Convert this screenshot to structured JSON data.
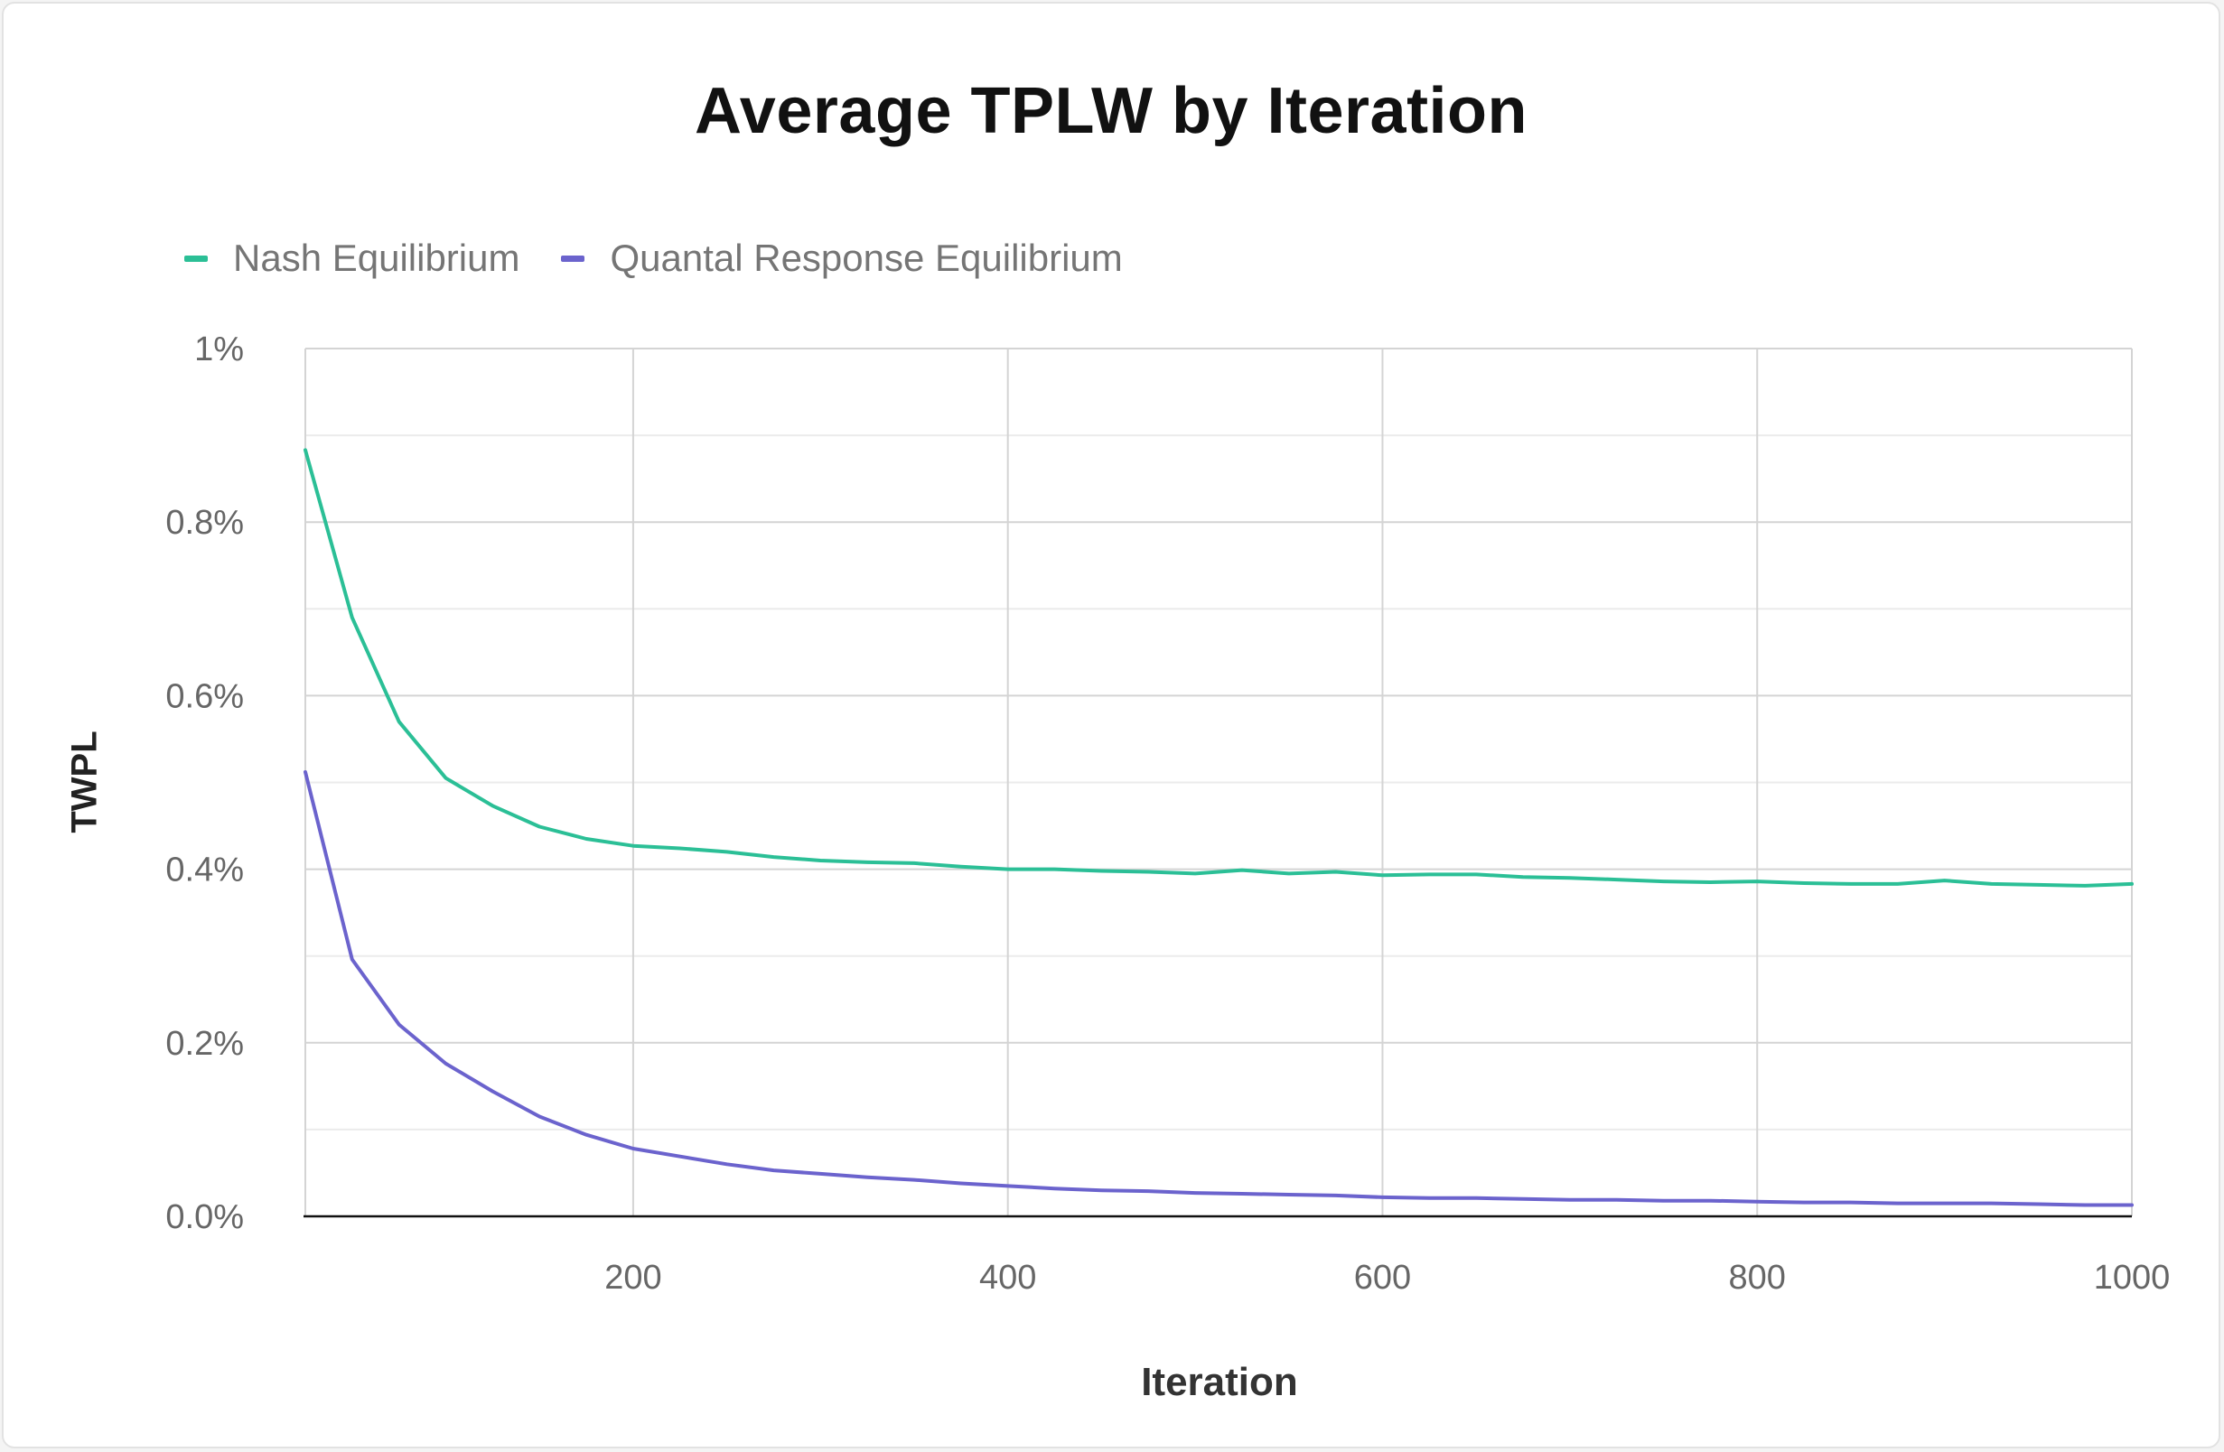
{
  "chart_data": {
    "type": "line",
    "title": "Average TPLW by Iteration",
    "xlabel": "Iteration",
    "ylabel": "TWPL",
    "xlim": [
      25,
      1000
    ],
    "ylim": [
      0,
      1
    ],
    "x_ticks": [
      200,
      400,
      600,
      800,
      1000
    ],
    "x_tick_labels": [
      "200",
      "400",
      "600",
      "800",
      "1000"
    ],
    "y_ticks": [
      0,
      0.2,
      0.4,
      0.6,
      0.8,
      1
    ],
    "y_tick_labels": [
      "0.0%",
      "0.2%",
      "0.4%",
      "0.6%",
      "0.8%",
      "1%"
    ],
    "y_unit": "%",
    "grid": true,
    "legend_position": "top-left",
    "x": [
      25,
      50,
      75,
      100,
      125,
      150,
      175,
      200,
      225,
      250,
      275,
      300,
      325,
      350,
      375,
      400,
      425,
      450,
      475,
      500,
      525,
      550,
      575,
      600,
      625,
      650,
      675,
      700,
      725,
      750,
      775,
      800,
      825,
      850,
      875,
      900,
      925,
      950,
      975,
      1000
    ],
    "series": [
      {
        "name": "Nash Equilibrium",
        "color": "#2bbf96",
        "values": [
          0.883,
          0.69,
          0.57,
          0.505,
          0.473,
          0.449,
          0.435,
          0.427,
          0.424,
          0.42,
          0.414,
          0.41,
          0.408,
          0.407,
          0.403,
          0.4,
          0.4,
          0.398,
          0.397,
          0.395,
          0.399,
          0.395,
          0.397,
          0.393,
          0.394,
          0.394,
          0.391,
          0.39,
          0.388,
          0.386,
          0.385,
          0.386,
          0.384,
          0.383,
          0.383,
          0.387,
          0.383,
          0.382,
          0.381,
          0.383
        ]
      },
      {
        "name": "Quantal Response Equilibrium",
        "color": "#6b63cd",
        "values": [
          0.512,
          0.296,
          0.221,
          0.176,
          0.144,
          0.115,
          0.094,
          0.078,
          0.069,
          0.06,
          0.053,
          0.049,
          0.045,
          0.042,
          0.038,
          0.035,
          0.032,
          0.03,
          0.029,
          0.027,
          0.026,
          0.025,
          0.024,
          0.022,
          0.021,
          0.021,
          0.02,
          0.019,
          0.019,
          0.018,
          0.018,
          0.017,
          0.016,
          0.016,
          0.015,
          0.015,
          0.015,
          0.014,
          0.013,
          0.013
        ]
      }
    ]
  }
}
